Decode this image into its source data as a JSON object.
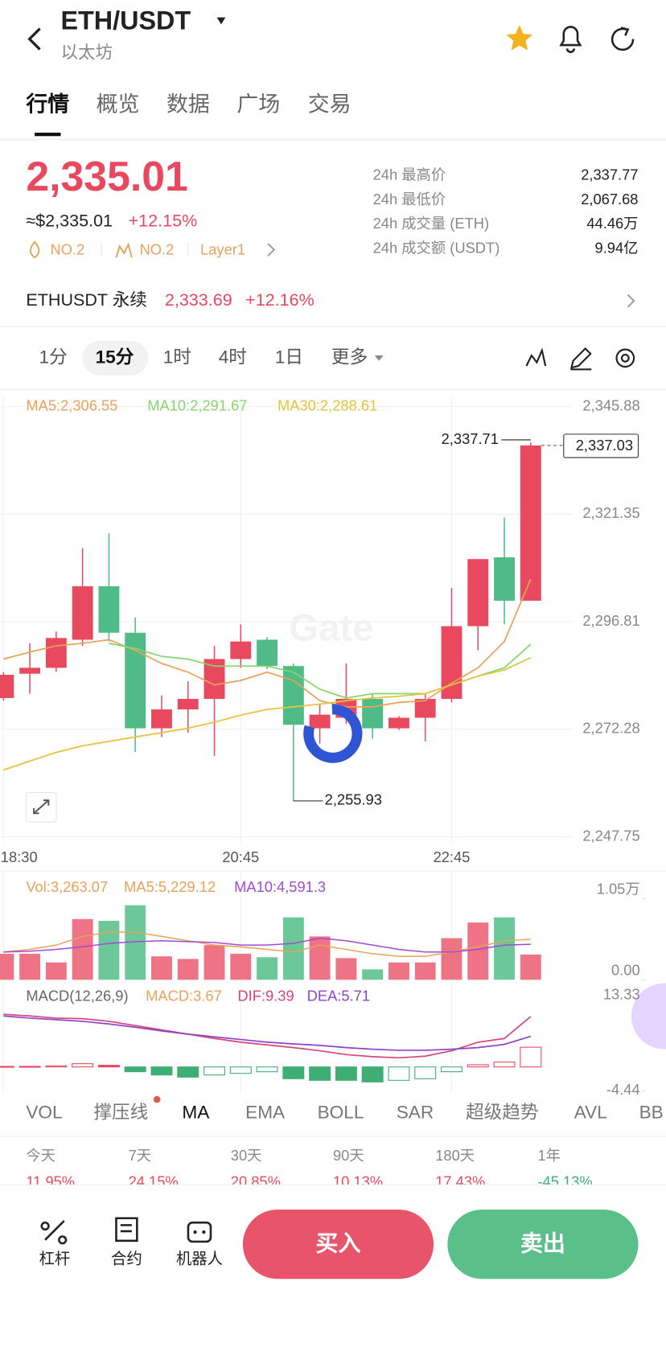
{
  "header": {
    "title": "ETH/USDT",
    "subtitle": "以太坊"
  },
  "tabs": [
    "行情",
    "概览",
    "数据",
    "广场",
    "交易"
  ],
  "ticker": {
    "price": "2,335.01",
    "usd_price": "≈$2,335.01",
    "change": "+12.15%",
    "badges": [
      "NO.2",
      "NO.2",
      "Layer1"
    ]
  },
  "stats": [
    {
      "label": "24h 最高价",
      "value": "2,337.77"
    },
    {
      "label": "24h 最低价",
      "value": "2,067.68"
    },
    {
      "label": "24h 成交量 (ETH)",
      "value": "44.46万"
    },
    {
      "label": "24h 成交额 (USDT)",
      "value": "9.94亿"
    }
  ],
  "perpetual": {
    "name": "ETHUSDT 永续",
    "price": "2,333.69",
    "change": "+12.16%"
  },
  "intervals": [
    "1分",
    "15分",
    "1时",
    "4时",
    "1日",
    "更多"
  ],
  "kline": {
    "type": "candlestick",
    "watermark": "Gate",
    "categories": [
      "18:30",
      null,
      null,
      null,
      null,
      null,
      null,
      null,
      null,
      "20:45",
      null,
      null,
      null,
      null,
      null,
      null,
      null,
      "22:45",
      null,
      null,
      null
    ],
    "open": [
      2279.4,
      2284.95,
      2286.3,
      2292.7,
      2304.9,
      2294.3,
      2272.5,
      2276.8,
      2279.2,
      2288.3,
      2292.7,
      2286.7,
      2272.5,
      2274.9,
      2279.2,
      2272.5,
      2274.9,
      2279.2,
      2295.8,
      2311.5,
      2301.6
    ],
    "high": [
      2285.3,
      2291.9,
      2294.6,
      2313.6,
      2317.0,
      2297.8,
      2280.0,
      2283.2,
      2291.3,
      2296.2,
      2293.3,
      2287.3,
      2278.0,
      2287.3,
      2280.4,
      2275.3,
      2280.4,
      2304.5,
      2311.1,
      2320.6,
      2337.71
    ],
    "low": [
      2278.8,
      2280.4,
      2285.4,
      2291.3,
      2292.3,
      2267.1,
      2270.5,
      2271.5,
      2266.2,
      2286.3,
      2286.0,
      2255.93,
      2269.0,
      2273.5,
      2270.1,
      2272.1,
      2269.5,
      2278.4,
      2290.3,
      2296.2,
      2301.6
    ],
    "close": [
      2284.7,
      2286.3,
      2293.1,
      2304.9,
      2294.3,
      2272.5,
      2276.8,
      2279.2,
      2288.3,
      2292.3,
      2286.7,
      2273.3,
      2275.6,
      2279.2,
      2272.5,
      2274.9,
      2279.2,
      2295.8,
      2311.1,
      2301.6,
      2337.03
    ],
    "up_color": "#e8495f",
    "down_color": "#4fbb86",
    "ylim": [
      2245.78,
      2348.65
    ],
    "yticks": [
      {
        "value": 2345.88,
        "label": "2,345.88"
      },
      {
        "value": 2321.35,
        "label": "2,321.35"
      },
      {
        "value": 2296.81,
        "label": "2,296.81"
      },
      {
        "value": 2272.28,
        "label": "2,272.28"
      },
      {
        "value": 2247.75,
        "label": "2,247.75"
      }
    ],
    "high_label": "2,337.71",
    "low_label": "2,255.93",
    "last_label": "2,337.03",
    "ma": [
      {
        "name": "MA5:2,306.55",
        "color": "#e8a25a",
        "values": [
          2288.3,
          2289.9,
          2291.3,
          2291.9,
          2292.7,
          2290.3,
          2287.3,
          2285.3,
          2282.4,
          2283.4,
          2285.3,
          2283.4,
          2278.8,
          2277.4,
          2277.4,
          2278.4,
          2278.8,
          2282.8,
          2286.3,
          2292.3,
          2306.55
        ]
      },
      {
        "name": "MA10:2,291.67",
        "color": "#86d56f",
        "values": [
          null,
          null,
          null,
          null,
          2291.9,
          2290.7,
          2288.9,
          2288.3,
          2286.7,
          2286.7,
          2286.7,
          2285.3,
          2281.4,
          2279.4,
          2280.4,
          2280.4,
          2280.4,
          2282.4,
          2284.4,
          2286.3,
          2291.67
        ]
      },
      {
        "name": "MA30:2,288.61",
        "color": "#e9c23c",
        "values": [
          2263.0,
          2265.0,
          2267.0,
          2268.5,
          2269.5,
          2270.5,
          2271.5,
          2272.5,
          2273.9,
          2275.5,
          2276.8,
          2277.4,
          2278.0,
          2278.8,
          2279.4,
          2279.8,
          2280.4,
          2282.4,
          2284.4,
          2285.8,
          2288.61
        ]
      }
    ]
  },
  "volume": {
    "legend": "Vol:3,263.07",
    "values": [
      3360,
      3360,
      2240,
      7840,
      7616,
      9632,
      3024,
      2688,
      4480,
      3360,
      2912,
      8064,
      5600,
      2800,
      1344,
      2240,
      2240,
      5376,
      7392,
      8064,
      3263.07
    ],
    "ylim": [
      0,
      11760
    ],
    "yticks": [
      {
        "value": 10500,
        "label": "1.05万"
      },
      {
        "value": 0,
        "label": "0.00"
      }
    ],
    "ma": [
      {
        "name": "MA5:5,229.12",
        "color": "#e8a25a",
        "values": [
          3584,
          3920,
          4480,
          5600,
          6160,
          6160,
          5600,
          5040,
          4480,
          4256,
          3920,
          3584,
          4480,
          3920,
          3360,
          3024,
          3024,
          3584,
          4256,
          5040,
          5229.12
        ]
      },
      {
        "name": "MA10:4,591.3",
        "color": "#a24bd1",
        "values": [
          3584,
          3696,
          3920,
          4256,
          4704,
          4928,
          5040,
          4928,
          4816,
          4480,
          4480,
          4704,
          5376,
          5040,
          4480,
          3920,
          3584,
          3584,
          3920,
          4480,
          4591.3
        ]
      }
    ]
  },
  "macd": {
    "title": "MACD(12,26,9)",
    "hist_label": "MACD:3.67",
    "hist_color": "#e8a25a",
    "values": [
      0.1,
      0.1,
      0.2,
      0.6,
      0.3,
      -0.9,
      -1.5,
      -1.9,
      -1.5,
      -1.2,
      -0.9,
      -2.2,
      -2.5,
      -2.5,
      -2.8,
      -2.5,
      -2.2,
      -0.9,
      0.4,
      0.9,
      3.67
    ],
    "ylim": [
      -5.09,
      14.62
    ],
    "yticks": [
      13.33,
      -4.44
    ],
    "lines": [
      {
        "name": "DIF:9.39",
        "color": "#d6457e",
        "values": [
          9.8,
          9.5,
          9.1,
          9.0,
          8.5,
          7.7,
          6.9,
          6.1,
          5.3,
          4.6,
          4.1,
          3.6,
          3.0,
          2.3,
          1.9,
          1.7,
          2.0,
          3.0,
          4.6,
          5.3,
          9.39
        ]
      },
      {
        "name": "DEA:5.71",
        "color": "#8e44c9",
        "values": [
          9.5,
          9.1,
          8.8,
          8.5,
          8.0,
          7.4,
          6.7,
          6.1,
          5.6,
          5.1,
          4.6,
          4.3,
          4.0,
          3.6,
          3.3,
          3.1,
          3.1,
          3.3,
          3.6,
          4.2,
          5.71
        ]
      }
    ]
  },
  "indicators": [
    "VOL",
    "撑压线",
    "MA",
    "EMA",
    "BOLL",
    "SAR",
    "超级趋势",
    "AVL",
    "BB"
  ],
  "performance": {
    "periods": [
      "今天",
      "7天",
      "30天",
      "90天",
      "180天",
      "1年"
    ],
    "values": [
      "11.95%",
      "24.15%",
      "20.85%",
      "10.13%",
      "17.43%",
      "-45.13%"
    ]
  },
  "bottom_nav": [
    "杠杆",
    "合约",
    "机器人"
  ],
  "actions": {
    "buy": "买入",
    "sell": "卖出"
  }
}
